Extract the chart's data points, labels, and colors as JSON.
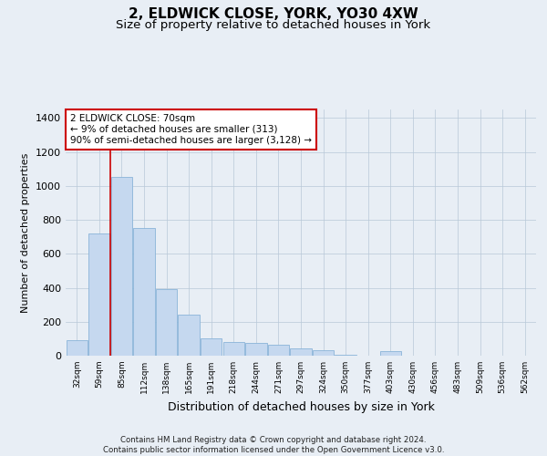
{
  "title": "2, ELDWICK CLOSE, YORK, YO30 4XW",
  "subtitle": "Size of property relative to detached houses in York",
  "xlabel": "Distribution of detached houses by size in York",
  "ylabel": "Number of detached properties",
  "categories": [
    "32sqm",
    "59sqm",
    "85sqm",
    "112sqm",
    "138sqm",
    "165sqm",
    "191sqm",
    "218sqm",
    "244sqm",
    "271sqm",
    "297sqm",
    "324sqm",
    "350sqm",
    "377sqm",
    "403sqm",
    "430sqm",
    "456sqm",
    "483sqm",
    "509sqm",
    "536sqm",
    "562sqm"
  ],
  "values": [
    90,
    720,
    1050,
    750,
    390,
    240,
    100,
    80,
    75,
    65,
    45,
    30,
    5,
    0,
    25,
    0,
    0,
    0,
    0,
    0,
    0
  ],
  "bar_color": "#c5d8ef",
  "bar_edge_color": "#8ab4d8",
  "marker_color": "#cc0000",
  "annotation_text": "2 ELDWICK CLOSE: 70sqm\n← 9% of detached houses are smaller (313)\n90% of semi-detached houses are larger (3,128) →",
  "annotation_box_color": "#ffffff",
  "annotation_box_edge": "#cc0000",
  "bg_color": "#e8eef5",
  "plot_bg_color": "#e8eef5",
  "footer": "Contains HM Land Registry data © Crown copyright and database right 2024.\nContains public sector information licensed under the Open Government Licence v3.0.",
  "ylim": [
    0,
    1450
  ],
  "yticks": [
    0,
    200,
    400,
    600,
    800,
    1000,
    1200,
    1400
  ],
  "title_fontsize": 11,
  "subtitle_fontsize": 9.5,
  "grid_color": "#b8c8d8"
}
